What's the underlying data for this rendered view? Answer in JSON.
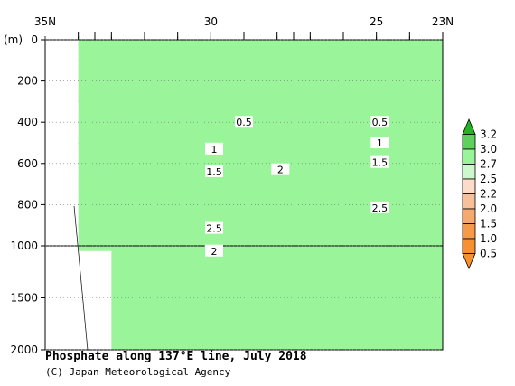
{
  "chart_data": {
    "type": "contour",
    "title": "Phosphate along 137°E line, July 2018",
    "credit": "(C) Japan Meteorological Agency",
    "x_axis": {
      "ticks": [
        "35N",
        "30",
        "25",
        "23N"
      ],
      "tick_values": [
        35,
        30,
        25,
        23
      ],
      "range": [
        35,
        23
      ]
    },
    "y_axis": {
      "unit_label": "(m)",
      "ticks": [
        "0",
        "200",
        "400",
        "600",
        "800",
        "1000",
        "1500",
        "2000"
      ],
      "tick_values": [
        0,
        200,
        400,
        600,
        800,
        1000,
        1500,
        2000
      ],
      "range": [
        0,
        2000
      ],
      "scale_break_at": 1000
    },
    "colorbar": {
      "labels": [
        "3.2",
        "3.0",
        "2.7",
        "2.5",
        "2.2",
        "2.0",
        "1.5",
        "1.0",
        "0.5"
      ],
      "levels": [
        3.2,
        3.0,
        2.7,
        2.5,
        2.2,
        2.0,
        1.5,
        1.0,
        0.5
      ],
      "colors": [
        "#22b422",
        "#5cd15c",
        "#9af59a",
        "#ccf8cc",
        "#fcdcc8",
        "#f7c098",
        "#f5a96e",
        "#f59a48",
        "#f7902e"
      ]
    },
    "contour_labels": [
      {
        "text": "0.5",
        "lat": 29.0,
        "depth": 400
      },
      {
        "text": "0.5",
        "lat": 24.9,
        "depth": 400
      },
      {
        "text": "1",
        "lat": 29.9,
        "depth": 530
      },
      {
        "text": "1",
        "lat": 24.9,
        "depth": 500
      },
      {
        "text": "1.5",
        "lat": 29.9,
        "depth": 640
      },
      {
        "text": "1.5",
        "lat": 24.9,
        "depth": 595
      },
      {
        "text": "2",
        "lat": 27.9,
        "depth": 630
      },
      {
        "text": "2",
        "lat": 29.9,
        "depth": 1050
      },
      {
        "text": "2.5",
        "lat": 29.9,
        "depth": 915
      },
      {
        "text": "2.5",
        "lat": 24.9,
        "depth": 815
      }
    ],
    "station_lats": [
      34.0,
      33.5,
      33.0,
      32.0,
      31.0,
      30.0,
      29.0,
      28.0,
      27.5,
      27.0,
      26.0,
      25.0,
      24.0,
      23.0
    ]
  }
}
